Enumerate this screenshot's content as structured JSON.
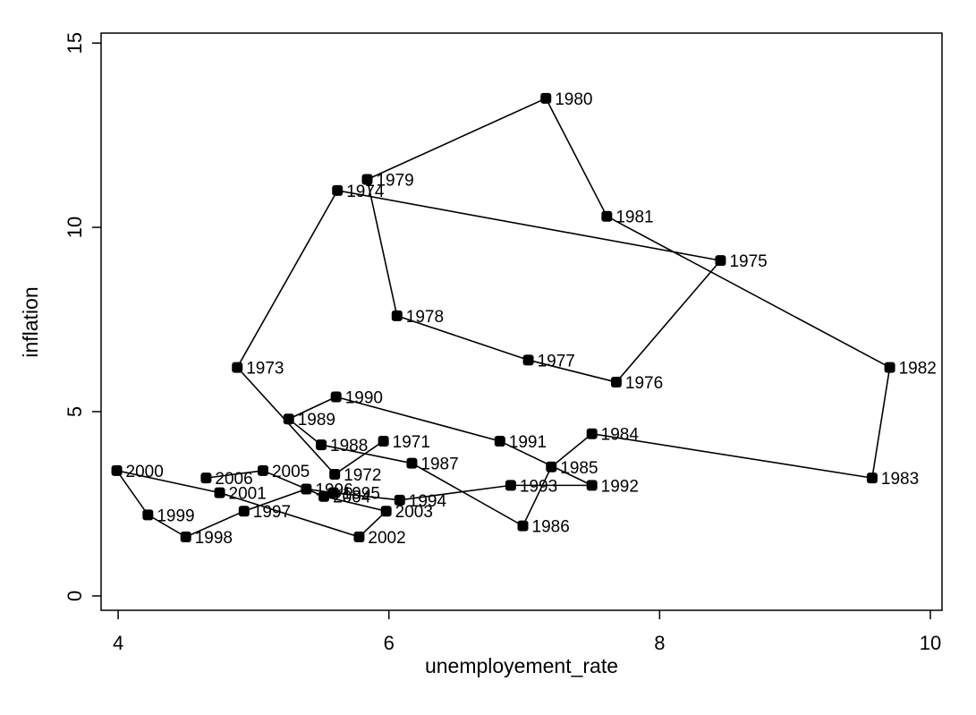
{
  "chart_data": {
    "type": "connected_scatter",
    "xlabel": "unemployement_rate",
    "ylabel": "inflation",
    "xlim": [
      3.874,
      10.086
    ],
    "ylim": [
      -0.39,
      15.27
    ],
    "xticks": [
      4,
      6,
      8,
      10
    ],
    "yticks": [
      0,
      5,
      10,
      15
    ],
    "color": "#000000",
    "series": [
      {
        "labels": [
          1971,
          1972,
          1973,
          1974,
          1975,
          1976,
          1977,
          1978,
          1979,
          1980,
          1981,
          1982,
          1983,
          1984,
          1985,
          1986,
          1987,
          1988,
          1989,
          1990,
          1991,
          1992,
          1993,
          1994,
          1995,
          1996,
          1997,
          1998,
          1999,
          2000,
          2001,
          2002,
          2003,
          2004,
          2005,
          2006
        ],
        "x": [
          5.96,
          5.6,
          4.88,
          5.62,
          8.45,
          7.68,
          7.03,
          6.06,
          5.84,
          7.16,
          7.61,
          9.7,
          9.57,
          7.5,
          7.2,
          6.99,
          6.17,
          5.5,
          5.26,
          5.61,
          6.82,
          7.5,
          6.9,
          6.08,
          5.59,
          5.39,
          4.93,
          4.5,
          4.22,
          3.99,
          4.75,
          5.78,
          5.98,
          5.52,
          5.07,
          4.65
        ],
        "values": [
          4.2,
          3.3,
          6.2,
          11.0,
          9.1,
          5.8,
          6.4,
          7.6,
          11.3,
          13.5,
          10.3,
          6.2,
          3.2,
          4.4,
          3.5,
          1.9,
          3.6,
          4.1,
          4.8,
          5.4,
          4.2,
          3.0,
          3.0,
          2.6,
          2.8,
          2.9,
          2.3,
          1.6,
          2.2,
          3.4,
          2.8,
          1.6,
          2.3,
          2.7,
          3.4,
          3.2
        ]
      }
    ]
  }
}
